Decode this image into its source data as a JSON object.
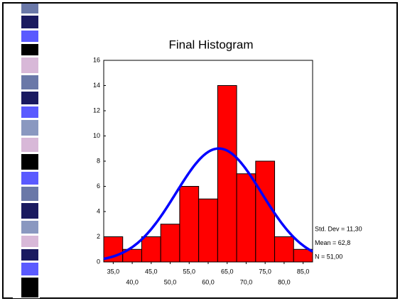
{
  "chart_data": {
    "type": "histogram",
    "title": "Final Histogram",
    "bins": [
      32.5,
      37.5,
      42.5,
      47.5,
      52.5,
      57.5,
      62.5,
      67.5,
      72.5,
      77.5,
      82.5,
      87.5
    ],
    "counts": [
      2,
      1,
      2,
      3,
      6,
      5,
      14,
      7,
      8,
      2,
      1
    ],
    "color": "#ff0000",
    "curve_color": "#0000ff",
    "xlim": [
      32.5,
      87.5
    ],
    "xticks": [
      {
        "value": 35,
        "label": "35,0"
      },
      {
        "value": 40,
        "label": "40,0"
      },
      {
        "value": 45,
        "label": "45,0"
      },
      {
        "value": 50,
        "label": "50,0"
      },
      {
        "value": 55,
        "label": "55,0"
      },
      {
        "value": 60,
        "label": "60,0"
      },
      {
        "value": 65,
        "label": "65,0"
      },
      {
        "value": 70,
        "label": "70,0"
      },
      {
        "value": 75,
        "label": "75,0"
      },
      {
        "value": 80,
        "label": "80,0"
      },
      {
        "value": 85,
        "label": "85,0"
      }
    ],
    "ylim": [
      0,
      16
    ],
    "yticks": [
      0,
      2,
      4,
      6,
      8,
      10,
      12,
      14,
      16
    ],
    "stats": [
      {
        "value": 11.3,
        "label": "Std. Dev = 11,30"
      },
      {
        "value": 62.8,
        "label": "Mean = 62,8"
      },
      {
        "value": 51,
        "label": "N = 51,00"
      }
    ]
  }
}
